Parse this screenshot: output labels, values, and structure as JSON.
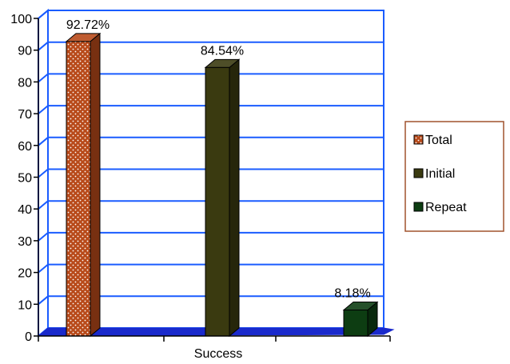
{
  "chart_data": {
    "type": "bar",
    "categories": [
      "Success"
    ],
    "series": [
      {
        "name": "Total",
        "values": [
          92.72
        ],
        "label": "92.72%",
        "color": "#b84a1a",
        "pattern": "dotted"
      },
      {
        "name": "Initial",
        "values": [
          84.54
        ],
        "label": "84.54%",
        "color": "#3a3a10"
      },
      {
        "name": "Repeat",
        "values": [
          8.18
        ],
        "label": "8.18%",
        "color": "#0d3d12"
      }
    ],
    "y_ticks": [
      "0",
      "10",
      "20",
      "30",
      "40",
      "50",
      "60",
      "70",
      "80",
      "90",
      "100"
    ],
    "ylim": [
      0,
      100
    ],
    "grid": true,
    "grid_color": "#1a5cff",
    "floor_color": "#1a2acc",
    "legend_position": "right",
    "legend_border_color": "#a0522d"
  }
}
